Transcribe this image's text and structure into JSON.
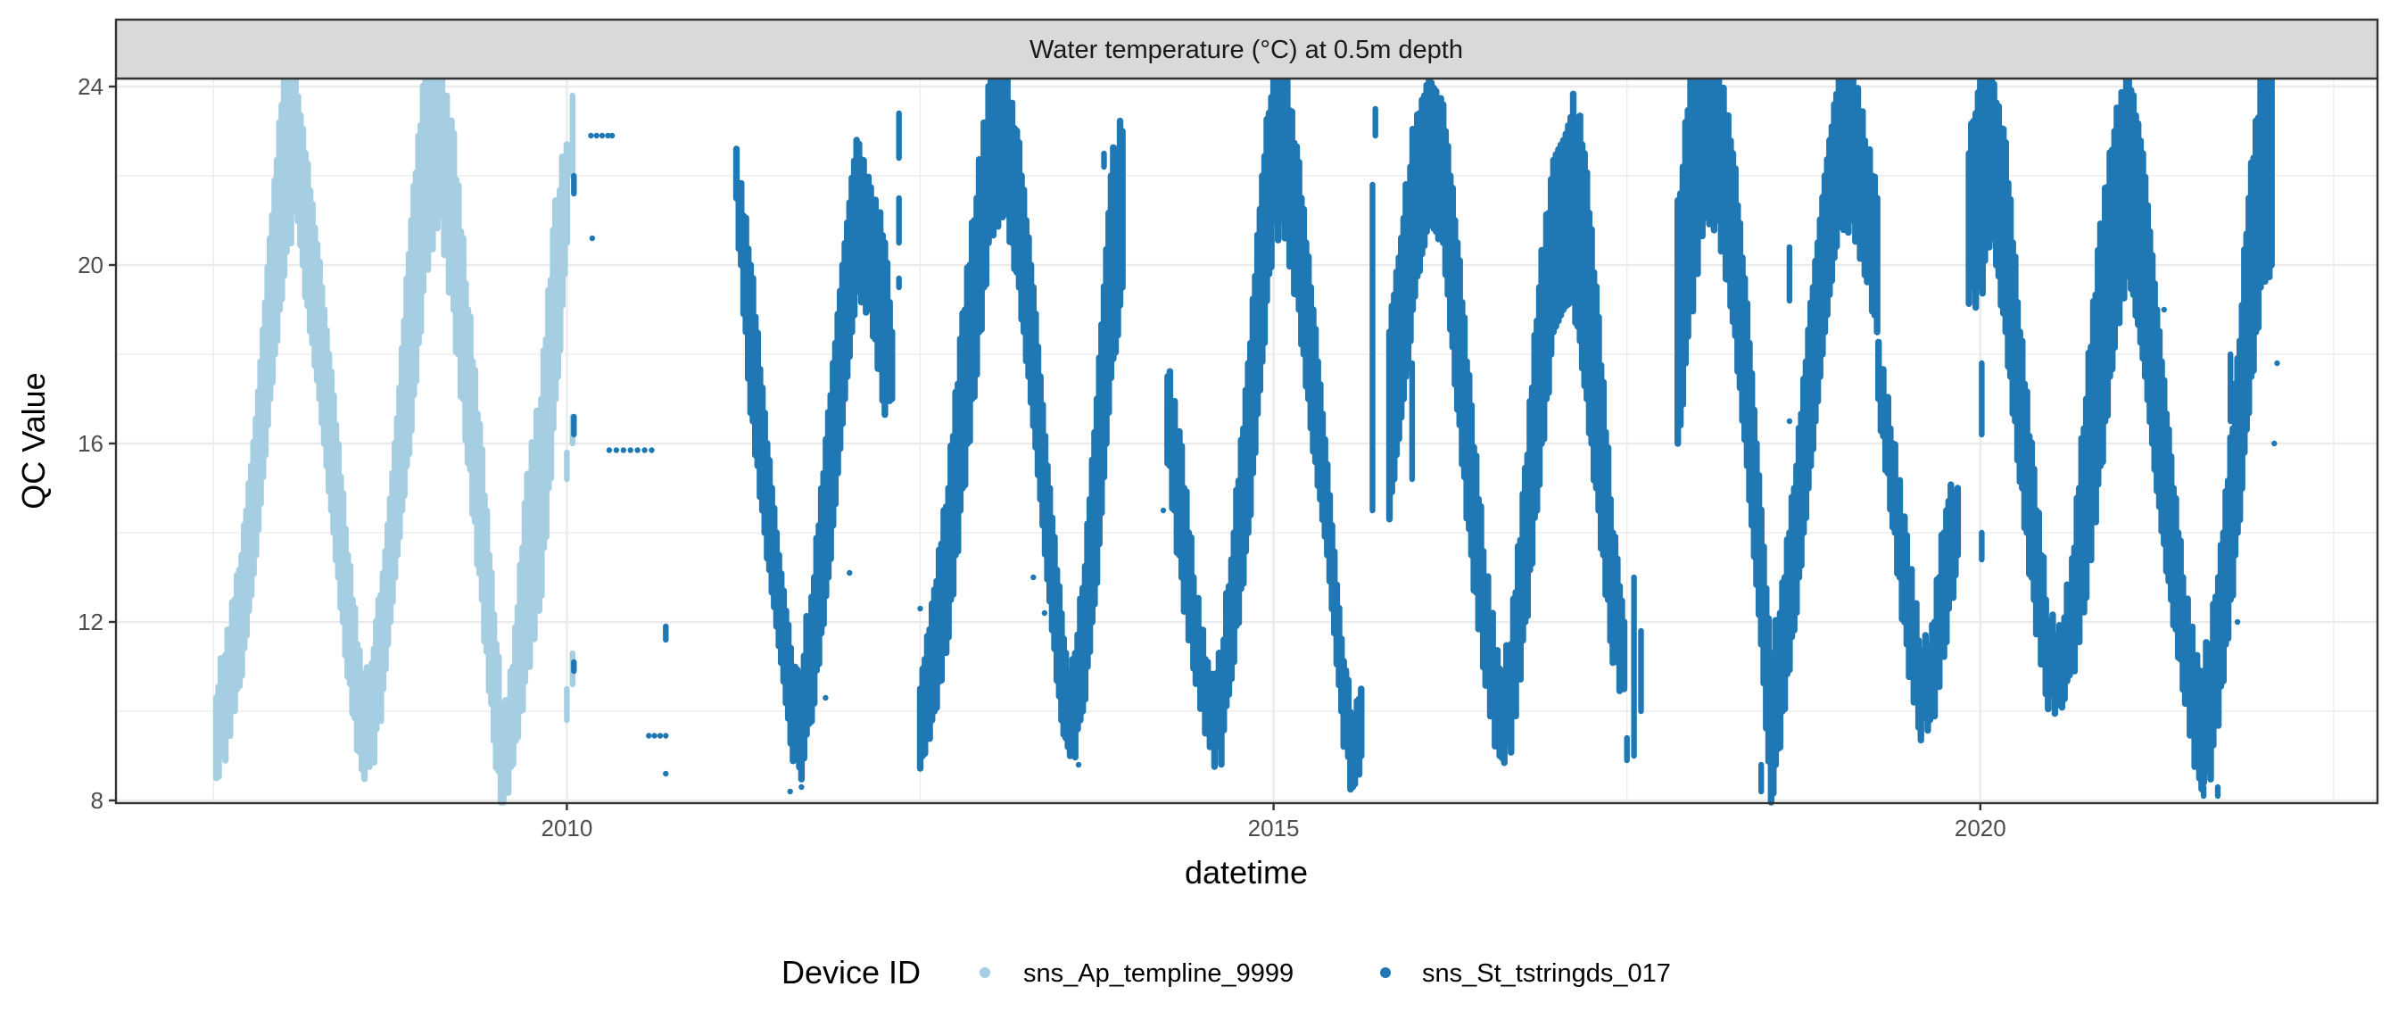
{
  "chart_data": {
    "type": "scatter",
    "strip_title": "Water temperature (°C) at 0.5m depth",
    "xlabel": "datetime",
    "ylabel": "QC Value",
    "xlim": [
      2006.81,
      2022.81
    ],
    "ylim": [
      7.94,
      24.18
    ],
    "x_ticks": [
      2010,
      2015,
      2020
    ],
    "x_tick_labels": [
      "2010",
      "2015",
      "2020"
    ],
    "x_minor_ticks": [
      2007.5,
      2012.5,
      2017.5,
      2022.5
    ],
    "y_ticks": [
      8,
      12,
      16,
      20,
      24
    ],
    "y_tick_labels": [
      "8",
      "12",
      "16",
      "20",
      "24"
    ],
    "y_minor_ticks": [
      10,
      14,
      18,
      22
    ],
    "grid": true,
    "legend": {
      "title": "Device ID",
      "position": "bottom",
      "entries": [
        {
          "label": "sns_Ap_templine_9999",
          "color": "#a6cee3"
        },
        {
          "label": "sns_St_tstringds_017",
          "color": "#1f78b4"
        }
      ]
    },
    "series_note": "Each series is given as envelope samples [year, min_value, max_value]; null marks a gap.",
    "series": [
      {
        "name": "sns_Ap_templine_9999",
        "color": "#a6cee3",
        "envelope": [
          [
            2007.52,
            8.7,
            10.3
          ],
          [
            2007.6,
            9.5,
            11.5
          ],
          [
            2007.7,
            11,
            13.5
          ],
          [
            2007.8,
            13.5,
            16.5
          ],
          [
            2007.9,
            17,
            20.5
          ],
          [
            2008.0,
            20,
            24.2
          ],
          [
            2008.08,
            21.5,
            24.2
          ],
          [
            2008.15,
            19.5,
            22.5
          ],
          [
            2008.25,
            17,
            20
          ],
          [
            2008.35,
            14,
            17
          ],
          [
            2008.45,
            11,
            13.5
          ],
          [
            2008.55,
            8.7,
            10.5
          ],
          [
            2008.62,
            9,
            11
          ],
          [
            2008.7,
            10.5,
            13
          ],
          [
            2008.8,
            13.5,
            16.5
          ],
          [
            2008.9,
            16.5,
            21
          ],
          [
            2009.0,
            20,
            24.2
          ],
          [
            2009.1,
            21.5,
            24.2
          ],
          [
            2009.2,
            19,
            22.5
          ],
          [
            2009.3,
            16,
            19
          ],
          [
            2009.4,
            12.5,
            15.5
          ],
          [
            2009.5,
            9,
            11.5
          ],
          [
            2009.55,
            8,
            9.5
          ],
          [
            2009.62,
            9,
            11
          ],
          [
            2009.72,
            11,
            15
          ],
          [
            2009.82,
            13,
            17
          ],
          [
            2009.92,
            17,
            21
          ],
          [
            2010.0,
            20.5,
            22.7
          ]
        ],
        "isolated": [
          [
            2010.04,
            22.0,
            23.8
          ],
          [
            2010.04,
            16.0,
            16.6
          ],
          [
            2010.04,
            10.6,
            11.3
          ],
          [
            2010.0,
            9.8,
            10.5
          ],
          [
            2010.0,
            15.2,
            15.8
          ]
        ]
      },
      {
        "name": "sns_St_tstringds_017",
        "color": "#1f78b4",
        "envelope": [
          [
            2011.2,
            21.5,
            22.2
          ],
          [
            2011.3,
            17,
            20
          ],
          [
            2011.4,
            14,
            16.5
          ],
          [
            2011.5,
            11.5,
            13.5
          ],
          [
            2011.6,
            9,
            11
          ],
          [
            2011.66,
            8.8,
            10.8
          ],
          [
            2011.75,
            10.5,
            13
          ],
          [
            2011.85,
            13,
            16.5
          ],
          [
            2011.95,
            16.5,
            20
          ],
          [
            2012.05,
            19.5,
            22.8
          ],
          [
            2012.15,
            19,
            21.5
          ],
          [
            2012.25,
            17,
            20.5
          ],
          [
            2012.3,
            17,
            18.5
          ],
          null,
          [
            2012.5,
            8.8,
            10.5
          ],
          [
            2012.6,
            10,
            12.5
          ],
          [
            2012.7,
            12,
            15
          ],
          [
            2012.8,
            15,
            18.5
          ],
          [
            2012.9,
            18,
            21.5
          ],
          [
            2013.0,
            21,
            24
          ],
          [
            2013.1,
            21.5,
            24.2
          ],
          [
            2013.2,
            19.5,
            22.5
          ],
          [
            2013.3,
            16.5,
            19.5
          ],
          [
            2013.4,
            13,
            15.5
          ],
          [
            2013.5,
            9.8,
            12
          ],
          [
            2013.56,
            9,
            10.5
          ],
          [
            2013.65,
            10,
            12.5
          ],
          [
            2013.75,
            13,
            17
          ],
          [
            2013.85,
            17.5,
            22
          ],
          [
            2013.93,
            19.5,
            23
          ],
          null,
          [
            2014.25,
            16,
            17.5
          ],
          [
            2014.35,
            13,
            15.5
          ],
          [
            2014.45,
            11,
            12.5
          ],
          [
            2014.55,
            9.2,
            10.5
          ],
          [
            2014.63,
            9.2,
            11
          ],
          [
            2014.72,
            11.5,
            14
          ],
          [
            2014.82,
            14,
            17.5
          ],
          [
            2014.92,
            18,
            22
          ],
          [
            2015.0,
            21,
            24.2
          ],
          [
            2015.08,
            21,
            24.2
          ],
          [
            2015.18,
            19,
            22
          ],
          [
            2015.28,
            16,
            19
          ],
          [
            2015.38,
            13.5,
            15.5
          ],
          [
            2015.48,
            10,
            11.5
          ],
          [
            2015.56,
            8.3,
            9.6
          ],
          [
            2015.62,
            9,
            10.5
          ],
          null,
          [
            2015.82,
            14.5,
            18.5
          ],
          [
            2015.92,
            17,
            21
          ],
          [
            2016.0,
            19.5,
            23
          ],
          [
            2016.1,
            21,
            24.2
          ],
          [
            2016.2,
            20.5,
            23.5
          ],
          [
            2016.3,
            17,
            20.5
          ],
          [
            2016.4,
            13.5,
            16.5
          ],
          [
            2016.5,
            11,
            13
          ],
          [
            2016.6,
            9,
            10.5
          ],
          [
            2016.68,
            9.5,
            11.5
          ],
          [
            2016.78,
            12,
            15
          ],
          [
            2016.88,
            15.5,
            19.5
          ],
          [
            2016.98,
            18.5,
            22
          ],
          [
            2017.12,
            19.5,
            23.5
          ],
          [
            2017.2,
            17.5,
            22.5
          ],
          [
            2017.3,
            14.5,
            18.5
          ],
          [
            2017.4,
            11.5,
            14
          ],
          [
            2017.48,
            10.5,
            12
          ],
          null,
          [
            2017.86,
            16,
            21
          ],
          [
            2017.95,
            19,
            24
          ],
          [
            2018.05,
            21.5,
            24.2
          ],
          [
            2018.15,
            21,
            24.2
          ],
          [
            2018.25,
            19,
            22.5
          ],
          [
            2018.35,
            15.5,
            19
          ],
          [
            2018.45,
            11.5,
            14.5
          ],
          [
            2018.52,
            8,
            11
          ],
          [
            2018.6,
            10,
            12.5
          ],
          [
            2018.7,
            12.5,
            15.5
          ],
          [
            2018.8,
            15.5,
            19
          ],
          [
            2018.9,
            18.5,
            22
          ],
          [
            2019.0,
            21,
            24.2
          ],
          [
            2019.1,
            21,
            24.2
          ],
          [
            2019.2,
            20,
            22.5
          ],
          [
            2019.27,
            18.5,
            21.5
          ],
          null,
          [
            2019.28,
            17,
            18
          ],
          [
            2019.38,
            14.5,
            16
          ],
          [
            2019.48,
            11.5,
            13.5
          ],
          [
            2019.58,
            9.8,
            11.2
          ],
          [
            2019.66,
            10,
            11.5
          ],
          [
            2019.76,
            12,
            14.5
          ],
          [
            2019.84,
            13.5,
            15
          ],
          null,
          [
            2019.92,
            19.5,
            22.5
          ],
          [
            2020.0,
            19.5,
            24
          ],
          [
            2020.08,
            21,
            24.2
          ],
          [
            2020.18,
            18.5,
            22.5
          ],
          [
            2020.28,
            15.5,
            18.5
          ],
          [
            2020.38,
            12.5,
            15
          ],
          [
            2020.48,
            10.5,
            12
          ],
          [
            2020.56,
            10.2,
            11.5
          ],
          [
            2020.65,
            11,
            13
          ],
          [
            2020.75,
            13,
            17
          ],
          [
            2020.85,
            15.5,
            20.5
          ],
          [
            2020.95,
            18.5,
            23
          ],
          [
            2021.05,
            20,
            24.2
          ],
          [
            2021.15,
            18,
            22.5
          ],
          [
            2021.25,
            15,
            19
          ],
          [
            2021.35,
            12.5,
            15.5
          ],
          [
            2021.45,
            10.5,
            12.5
          ],
          [
            2021.55,
            8.5,
            10.5
          ],
          [
            2021.63,
            8.8,
            11.5
          ],
          [
            2021.72,
            11,
            14
          ],
          [
            2021.82,
            14,
            17.5
          ],
          [
            2021.9,
            17,
            21.5
          ],
          [
            2022.0,
            20,
            24.2
          ],
          [
            2022.06,
            20,
            24.2
          ]
        ],
        "isolated": [
          [
            2010.17,
            22.9,
            22.9
          ],
          [
            2010.21,
            22.9,
            22.9
          ],
          [
            2010.25,
            22.9,
            22.9
          ],
          [
            2010.29,
            22.9,
            22.9
          ],
          [
            2010.32,
            22.9,
            22.9
          ],
          [
            2010.18,
            20.6,
            20.6
          ],
          [
            2010.05,
            21.6,
            22.0
          ],
          [
            2010.05,
            16.2,
            16.6
          ],
          [
            2010.05,
            10.9,
            11.1
          ],
          [
            2010.3,
            15.85,
            15.85
          ],
          [
            2010.35,
            15.85,
            15.85
          ],
          [
            2010.4,
            15.85,
            15.85
          ],
          [
            2010.45,
            15.85,
            15.85
          ],
          [
            2010.5,
            15.85,
            15.85
          ],
          [
            2010.55,
            15.85,
            15.85
          ],
          [
            2010.6,
            15.85,
            15.85
          ],
          [
            2010.7,
            11.6,
            11.9
          ],
          [
            2010.58,
            9.45,
            9.45
          ],
          [
            2010.62,
            9.45,
            9.45
          ],
          [
            2010.66,
            9.45,
            9.45
          ],
          [
            2010.7,
            9.45,
            9.45
          ],
          [
            2010.7,
            8.6,
            8.6
          ],
          [
            2011.58,
            8.2,
            8.2
          ],
          [
            2011.66,
            8.3,
            8.3
          ],
          [
            2011.83,
            10.3,
            10.3
          ],
          [
            2012.0,
            13.1,
            13.1
          ],
          [
            2012.35,
            22.4,
            23.4
          ],
          [
            2012.35,
            20.5,
            21.5
          ],
          [
            2012.35,
            19.5,
            19.7
          ],
          [
            2012.5,
            12.3,
            12.3
          ],
          [
            2013.3,
            13.0,
            13.0
          ],
          [
            2013.3,
            16.7,
            16.7
          ],
          [
            2013.38,
            12.2,
            12.2
          ],
          [
            2013.62,
            8.8,
            8.8
          ],
          [
            2013.8,
            22.2,
            22.5
          ],
          [
            2014.22,
            14.5,
            14.5
          ],
          [
            2015.15,
            21.0,
            21.0
          ],
          [
            2015.7,
            14.5,
            21.8
          ],
          [
            2015.72,
            22.9,
            23.5
          ],
          [
            2015.98,
            15.2,
            17.8
          ],
          [
            2016.9,
            18.8,
            19.2
          ],
          [
            2017.55,
            9.0,
            13.0
          ],
          [
            2017.6,
            10.0,
            11.8
          ],
          [
            2017.5,
            8.9,
            9.4
          ],
          [
            2018.45,
            8.2,
            8.8
          ],
          [
            2018.65,
            19.2,
            20.4
          ],
          [
            2018.65,
            16.5,
            16.5
          ],
          [
            2020.01,
            16.2,
            17.8
          ],
          [
            2020.01,
            13.4,
            14.0
          ],
          [
            2019.75,
            13.8,
            13.8
          ],
          [
            2019.8,
            13.8,
            13.8
          ],
          [
            2021.3,
            19.0,
            19.0
          ],
          [
            2021.35,
            14.5,
            14.5
          ],
          [
            2021.77,
            16.5,
            18.0
          ],
          [
            2021.82,
            12.0,
            12.0
          ],
          [
            2022.08,
            16.0,
            16.0
          ],
          [
            2022.1,
            17.8,
            17.8
          ],
          [
            2021.58,
            8.1,
            8.3
          ],
          [
            2021.68,
            8.1,
            8.3
          ]
        ]
      }
    ]
  }
}
